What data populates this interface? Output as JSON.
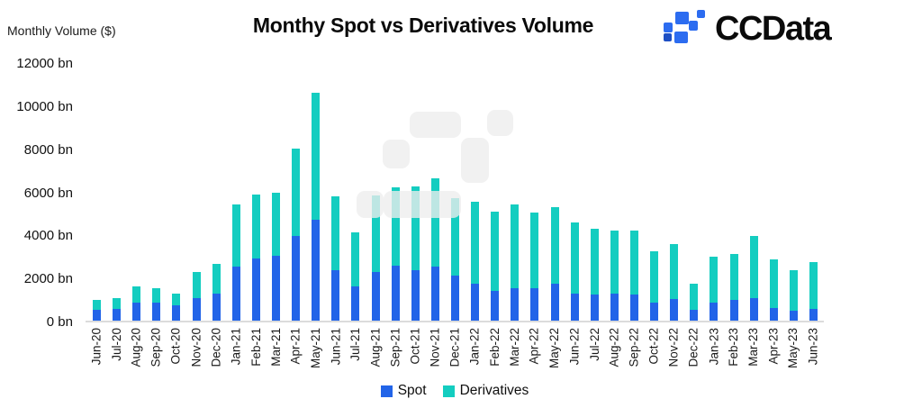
{
  "header": {
    "title": "Monthy Spot vs Derivatives Volume",
    "logo_text": "CCData",
    "logo_icon": "ccdata-pixel-logo",
    "logo_colors": {
      "primary": "#2c6cf0",
      "dark": "#1d4fc4"
    }
  },
  "axis": {
    "y_label": "Monthly Volume ($)"
  },
  "chart_data": {
    "type": "bar",
    "stacked": true,
    "title": "Monthy Spot vs Derivatives Volume",
    "ylabel": "Monthly Volume ($)",
    "unit": "bn",
    "ylim": [
      0,
      12000
    ],
    "grid": false,
    "legend_position": "bottom",
    "y_ticks": [
      "12000 bn",
      "10000 bn",
      "8000 bn",
      "6000 bn",
      "4000 bn",
      "2000 bn",
      "0 bn"
    ],
    "categories": [
      "Jun-20",
      "Jul-20",
      "Aug-20",
      "Sep-20",
      "Oct-20",
      "Nov-20",
      "Dec-20",
      "Jan-21",
      "Feb-21",
      "Mar-21",
      "Apr-21",
      "May-21",
      "Jun-21",
      "Jul-21",
      "Aug-21",
      "Sep-21",
      "Oct-21",
      "Nov-21",
      "Dec-21",
      "Jan-22",
      "Feb-22",
      "Mar-22",
      "Apr-22",
      "May-22",
      "Jun-22",
      "Jul-22",
      "Aug-22",
      "Sep-22",
      "Oct-22",
      "Nov-22",
      "Dec-22",
      "Jan-23",
      "Feb-23",
      "Mar-23",
      "Apr-23",
      "May-23",
      "Jun-23"
    ],
    "series": [
      {
        "name": "Spot",
        "color": "#2264e8",
        "values": [
          500,
          550,
          850,
          850,
          700,
          1050,
          1250,
          2500,
          2900,
          3000,
          3950,
          4700,
          2350,
          1600,
          2250,
          2550,
          2350,
          2500,
          2100,
          1700,
          1400,
          1500,
          1500,
          1700,
          1250,
          1200,
          1250,
          1200,
          850,
          1000,
          500,
          850,
          950,
          1050,
          600,
          450,
          550
        ]
      },
      {
        "name": "Derivatives",
        "color": "#14cdc0",
        "values": [
          450,
          500,
          750,
          650,
          550,
          1200,
          1400,
          2900,
          2950,
          2950,
          4050,
          5900,
          3400,
          2500,
          3550,
          3650,
          3900,
          4100,
          3600,
          3800,
          3650,
          3900,
          3500,
          3550,
          3300,
          3050,
          2950,
          3000,
          2350,
          2550,
          1200,
          2100,
          2150,
          2900,
          2250,
          1900,
          2150
        ]
      }
    ]
  }
}
